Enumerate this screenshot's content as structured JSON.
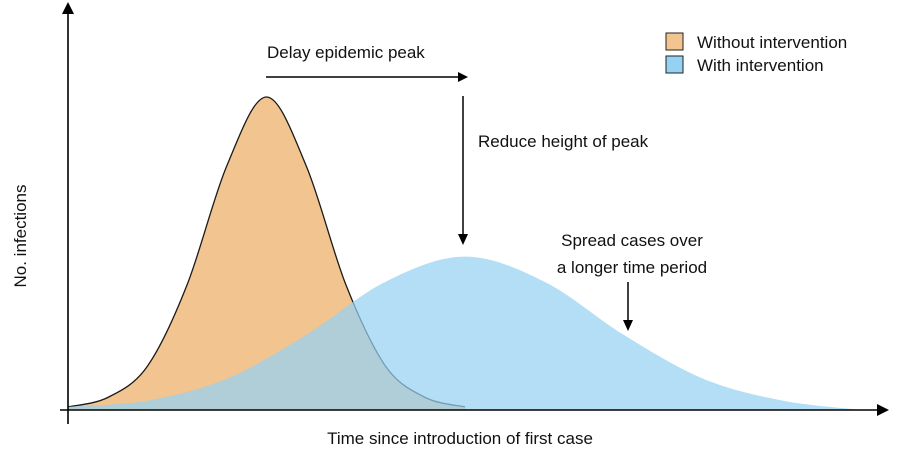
{
  "chart_data": {
    "type": "area",
    "title": "",
    "xlabel": "Time since introduction of first case",
    "ylabel": "No. infections",
    "xlim": [
      0,
      100
    ],
    "ylim": [
      0,
      100
    ],
    "grid": false,
    "legend_position": "top-right",
    "series": [
      {
        "name": "Without intervention",
        "color": "#F2C48F",
        "x": [
          0,
          5,
          10,
          15,
          20,
          25,
          30,
          35,
          40,
          45,
          50
        ],
        "y": [
          1,
          4,
          14,
          40,
          78,
          100,
          78,
          40,
          14,
          4,
          1
        ]
      },
      {
        "name": "With intervention",
        "color": "#95D1F2",
        "x": [
          0,
          10,
          20,
          30,
          40,
          50,
          60,
          70,
          80,
          90,
          100
        ],
        "y": [
          1,
          3,
          10,
          24,
          41,
          49,
          41,
          24,
          10,
          3,
          0
        ]
      }
    ],
    "annotations": [
      "Delay epidemic peak",
      "Reduce height of peak",
      "Spread cases over",
      "a longer time period"
    ]
  }
}
